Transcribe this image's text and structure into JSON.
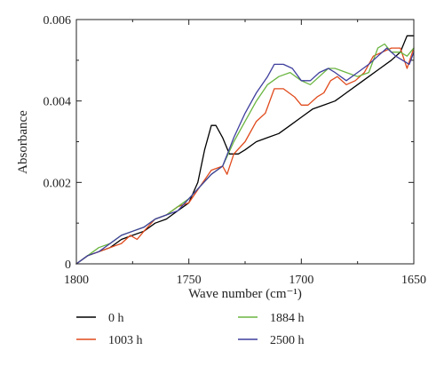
{
  "chart_data": {
    "type": "line",
    "xlabel": "Wave number (cm⁻¹)",
    "ylabel": "Absorbance",
    "x_ticks": [
      "1800",
      "1750",
      "1700",
      "1650"
    ],
    "y_ticks": [
      "0",
      "0.002",
      "0.004",
      "0.006"
    ],
    "xlim": [
      1800,
      1650
    ],
    "ylim": [
      0,
      0.006
    ],
    "x_reversed": true,
    "grid": false,
    "legend_position": "bottom",
    "series": [
      {
        "name": "0 h",
        "color": "#000000",
        "points": [
          [
            1800,
            0.0
          ],
          [
            1795,
            0.0002
          ],
          [
            1790,
            0.0003
          ],
          [
            1785,
            0.0004
          ],
          [
            1780,
            0.0006
          ],
          [
            1775,
            0.0007
          ],
          [
            1770,
            0.0008
          ],
          [
            1765,
            0.001
          ],
          [
            1760,
            0.0011
          ],
          [
            1755,
            0.0013
          ],
          [
            1750,
            0.0015
          ],
          [
            1746,
            0.002
          ],
          [
            1743,
            0.0028
          ],
          [
            1740,
            0.0034
          ],
          [
            1738,
            0.0034
          ],
          [
            1735,
            0.0031
          ],
          [
            1732,
            0.0027
          ],
          [
            1728,
            0.0027
          ],
          [
            1725,
            0.0028
          ],
          [
            1720,
            0.003
          ],
          [
            1715,
            0.0031
          ],
          [
            1710,
            0.0032
          ],
          [
            1705,
            0.0034
          ],
          [
            1700,
            0.0036
          ],
          [
            1695,
            0.0038
          ],
          [
            1690,
            0.0039
          ],
          [
            1685,
            0.004
          ],
          [
            1680,
            0.0042
          ],
          [
            1675,
            0.0044
          ],
          [
            1670,
            0.0046
          ],
          [
            1665,
            0.0048
          ],
          [
            1660,
            0.005
          ],
          [
            1656,
            0.0052
          ],
          [
            1653,
            0.0056
          ],
          [
            1650,
            0.0056
          ]
        ]
      },
      {
        "name": "1003 h",
        "color": "#e04a1c",
        "points": [
          [
            1800,
            0.0
          ],
          [
            1795,
            0.0002
          ],
          [
            1790,
            0.0003
          ],
          [
            1785,
            0.0004
          ],
          [
            1780,
            0.0005
          ],
          [
            1776,
            0.0007
          ],
          [
            1773,
            0.0006
          ],
          [
            1770,
            0.0008
          ],
          [
            1765,
            0.0011
          ],
          [
            1760,
            0.0012
          ],
          [
            1755,
            0.0014
          ],
          [
            1750,
            0.0015
          ],
          [
            1745,
            0.0019
          ],
          [
            1740,
            0.0023
          ],
          [
            1735,
            0.0024
          ],
          [
            1733,
            0.0022
          ],
          [
            1730,
            0.0027
          ],
          [
            1725,
            0.003
          ],
          [
            1720,
            0.0035
          ],
          [
            1716,
            0.0037
          ],
          [
            1712,
            0.0043
          ],
          [
            1708,
            0.0043
          ],
          [
            1703,
            0.0041
          ],
          [
            1700,
            0.0039
          ],
          [
            1697,
            0.0039
          ],
          [
            1693,
            0.0041
          ],
          [
            1690,
            0.0042
          ],
          [
            1687,
            0.0045
          ],
          [
            1684,
            0.0046
          ],
          [
            1680,
            0.0044
          ],
          [
            1676,
            0.0045
          ],
          [
            1672,
            0.0047
          ],
          [
            1668,
            0.0051
          ],
          [
            1664,
            0.0052
          ],
          [
            1660,
            0.0053
          ],
          [
            1656,
            0.0053
          ],
          [
            1653,
            0.0048
          ],
          [
            1650,
            0.0053
          ]
        ]
      },
      {
        "name": "1884 h",
        "color": "#6ab540",
        "points": [
          [
            1800,
            0.0
          ],
          [
            1795,
            0.0002
          ],
          [
            1790,
            0.0004
          ],
          [
            1785,
            0.0005
          ],
          [
            1780,
            0.0007
          ],
          [
            1775,
            0.0008
          ],
          [
            1770,
            0.0009
          ],
          [
            1765,
            0.0011
          ],
          [
            1760,
            0.0012
          ],
          [
            1755,
            0.0014
          ],
          [
            1750,
            0.0016
          ],
          [
            1745,
            0.0019
          ],
          [
            1740,
            0.0022
          ],
          [
            1735,
            0.0024
          ],
          [
            1730,
            0.003
          ],
          [
            1725,
            0.0035
          ],
          [
            1720,
            0.004
          ],
          [
            1715,
            0.0044
          ],
          [
            1710,
            0.0046
          ],
          [
            1705,
            0.0047
          ],
          [
            1700,
            0.0045
          ],
          [
            1696,
            0.0044
          ],
          [
            1692,
            0.0046
          ],
          [
            1688,
            0.0048
          ],
          [
            1685,
            0.0048
          ],
          [
            1680,
            0.0047
          ],
          [
            1675,
            0.0046
          ],
          [
            1670,
            0.0047
          ],
          [
            1666,
            0.0053
          ],
          [
            1663,
            0.0054
          ],
          [
            1660,
            0.0052
          ],
          [
            1656,
            0.0052
          ],
          [
            1653,
            0.0051
          ],
          [
            1650,
            0.0053
          ]
        ]
      },
      {
        "name": "2500 h",
        "color": "#3f3f9e",
        "points": [
          [
            1800,
            0.0
          ],
          [
            1795,
            0.0002
          ],
          [
            1790,
            0.0003
          ],
          [
            1785,
            0.0005
          ],
          [
            1780,
            0.0007
          ],
          [
            1775,
            0.0008
          ],
          [
            1770,
            0.0009
          ],
          [
            1765,
            0.0011
          ],
          [
            1760,
            0.0012
          ],
          [
            1755,
            0.0013
          ],
          [
            1750,
            0.0016
          ],
          [
            1745,
            0.0019
          ],
          [
            1740,
            0.0022
          ],
          [
            1735,
            0.0024
          ],
          [
            1730,
            0.0031
          ],
          [
            1725,
            0.0037
          ],
          [
            1720,
            0.0042
          ],
          [
            1715,
            0.0046
          ],
          [
            1712,
            0.0049
          ],
          [
            1708,
            0.0049
          ],
          [
            1704,
            0.0048
          ],
          [
            1700,
            0.0045
          ],
          [
            1696,
            0.0045
          ],
          [
            1692,
            0.0047
          ],
          [
            1688,
            0.0048
          ],
          [
            1685,
            0.0047
          ],
          [
            1680,
            0.0045
          ],
          [
            1675,
            0.0047
          ],
          [
            1670,
            0.0049
          ],
          [
            1666,
            0.0051
          ],
          [
            1662,
            0.0053
          ],
          [
            1658,
            0.0051
          ],
          [
            1655,
            0.005
          ],
          [
            1652,
            0.0049
          ],
          [
            1650,
            0.0052
          ]
        ]
      }
    ]
  },
  "legend": {
    "items": [
      {
        "label": "0 h",
        "color": "#000000"
      },
      {
        "label": "1884 h",
        "color": "#6ab540"
      },
      {
        "label": "1003 h",
        "color": "#e04a1c"
      },
      {
        "label": "2500 h",
        "color": "#3f3f9e"
      }
    ]
  }
}
